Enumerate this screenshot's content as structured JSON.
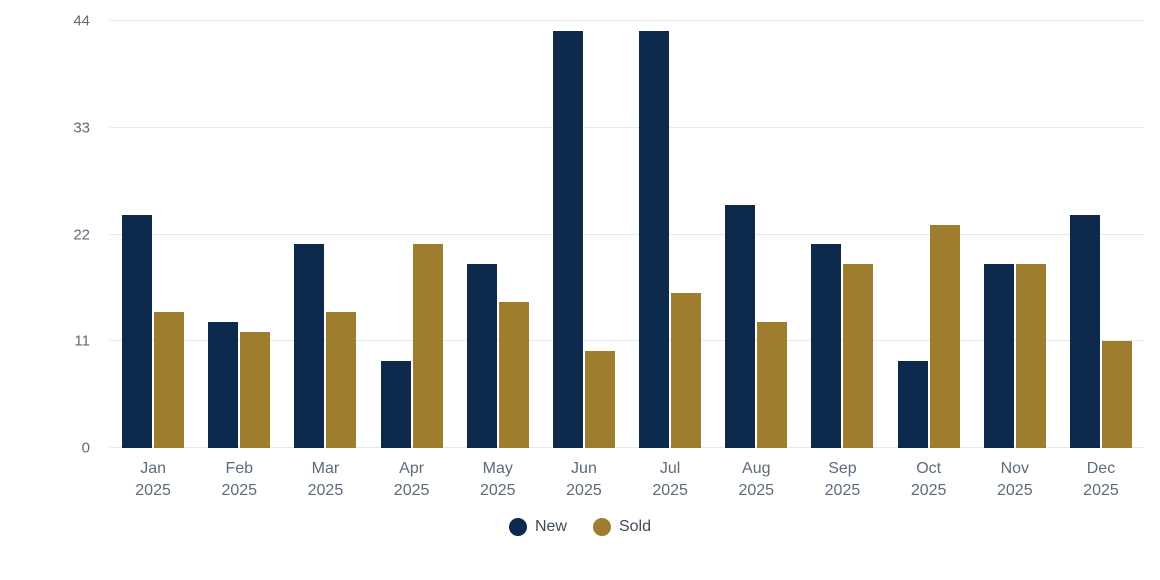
{
  "chart_data": {
    "type": "bar",
    "title": "",
    "categories": [
      "Jan 2025",
      "Feb 2025",
      "Mar 2025",
      "Apr 2025",
      "May 2025",
      "Jun 2025",
      "Jul 2025",
      "Aug 2025",
      "Sep 2025",
      "Oct 2025",
      "Nov 2025",
      "Dec 2025"
    ],
    "series": [
      {
        "name": "New",
        "color": "#0d2a4d",
        "values": [
          24,
          13,
          21,
          9,
          19,
          43,
          43,
          25,
          21,
          9,
          19,
          24
        ]
      },
      {
        "name": "Sold",
        "color": "#9f7d2e",
        "values": [
          14,
          12,
          14,
          21,
          15,
          10,
          16,
          13,
          19,
          23,
          19,
          11
        ]
      }
    ],
    "xlabel": "",
    "ylabel": "",
    "ylim": [
      0,
      44
    ],
    "yticks": [
      0,
      11,
      22,
      33,
      44
    ],
    "grid": true,
    "legend_position": "bottom"
  },
  "colors": {
    "background": "#ffffff",
    "gridline": "#e4e9f0",
    "axis_text": "#5d6b7a",
    "legend_text": "#3e4c59"
  }
}
